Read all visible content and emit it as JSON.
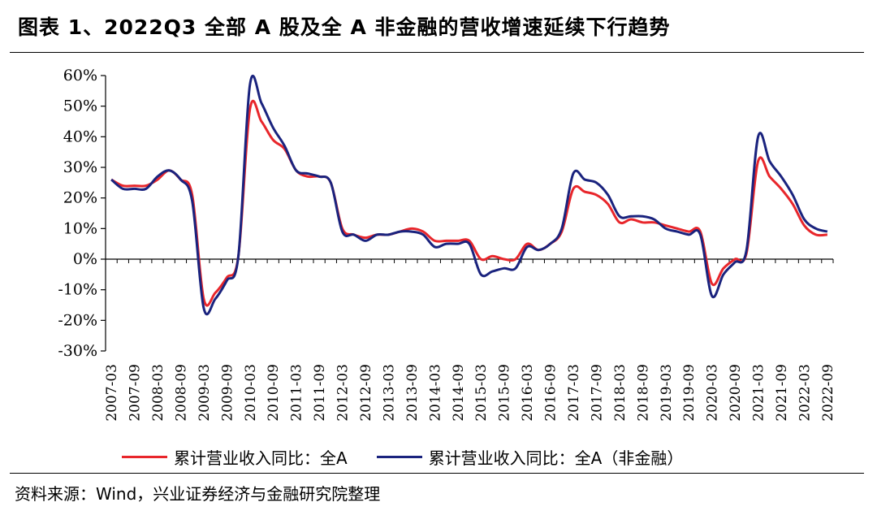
{
  "figure": {
    "title": "图表 1、2022Q3 全部 A 股及全 A 非金融的营收增速延续下行趋势",
    "source": "资料来源：Wind，兴业证券经济与金融研究院整理"
  },
  "chart_data": {
    "type": "line",
    "title": "图表 1、2022Q3 全部 A 股及全 A 非金融的营收增速延续下行趋势",
    "xlabel": "",
    "ylabel": "",
    "ylim": [
      -30,
      60
    ],
    "yticks": [
      -30,
      -20,
      -10,
      0,
      10,
      20,
      30,
      40,
      50,
      60
    ],
    "ytick_labels": [
      "-30%",
      "-20%",
      "-10%",
      "0%",
      "10%",
      "20%",
      "30%",
      "40%",
      "50%",
      "60%"
    ],
    "xtick_labels": [
      "2007-03",
      "2007-09",
      "2008-03",
      "2008-09",
      "2009-03",
      "2009-09",
      "2010-03",
      "2010-09",
      "2011-03",
      "2011-09",
      "2012-03",
      "2012-09",
      "2013-03",
      "2013-09",
      "2014-03",
      "2014-09",
      "2015-03",
      "2015-09",
      "2016-03",
      "2016-09",
      "2017-03",
      "2017-09",
      "2018-03",
      "2018-09",
      "2019-03",
      "2019-09",
      "2020-03",
      "2020-09",
      "2021-03",
      "2021-09",
      "2022-03",
      "2022-09"
    ],
    "x": [
      "2007-03",
      "2007-06",
      "2007-09",
      "2007-12",
      "2008-03",
      "2008-06",
      "2008-09",
      "2008-12",
      "2009-03",
      "2009-06",
      "2009-09",
      "2009-12",
      "2010-03",
      "2010-06",
      "2010-09",
      "2010-12",
      "2011-03",
      "2011-06",
      "2011-09",
      "2011-12",
      "2012-03",
      "2012-06",
      "2012-09",
      "2012-12",
      "2013-03",
      "2013-06",
      "2013-09",
      "2013-12",
      "2014-03",
      "2014-06",
      "2014-09",
      "2014-12",
      "2015-03",
      "2015-06",
      "2015-09",
      "2015-12",
      "2016-03",
      "2016-06",
      "2016-09",
      "2016-12",
      "2017-03",
      "2017-06",
      "2017-09",
      "2017-12",
      "2018-03",
      "2018-06",
      "2018-09",
      "2018-12",
      "2019-03",
      "2019-06",
      "2019-09",
      "2019-12",
      "2020-03",
      "2020-06",
      "2020-09",
      "2020-12",
      "2021-03",
      "2021-06",
      "2021-09",
      "2021-12",
      "2022-03",
      "2022-06",
      "2022-09"
    ],
    "series": [
      {
        "name": "累计营业收入同比：全A",
        "color": "#e8262b",
        "values": [
          26,
          24,
          24,
          24,
          26,
          29,
          26,
          21,
          -13,
          -11,
          -6,
          1,
          49,
          45,
          39,
          36,
          29,
          27,
          27,
          25,
          10,
          8,
          7,
          8,
          8,
          9,
          10,
          9,
          6,
          6,
          6,
          6,
          0,
          1,
          0,
          0,
          5,
          3,
          5,
          9,
          23,
          22,
          21,
          18,
          12,
          13,
          12,
          12,
          11,
          10,
          9,
          9,
          -8,
          -3,
          0,
          2,
          32,
          27,
          23,
          18,
          11,
          8,
          8
        ]
      },
      {
        "name": "累计营业收入同比：全A（非金融）",
        "color": "#1a237e",
        "values": [
          26,
          23,
          23,
          23,
          27,
          29,
          26,
          19,
          -16,
          -13,
          -7,
          1,
          57,
          51,
          43,
          37,
          29,
          28,
          27,
          25,
          9,
          8,
          6,
          8,
          8,
          9,
          9,
          8,
          4,
          5,
          5,
          5,
          -5,
          -4,
          -3,
          -3,
          4,
          3,
          5,
          10,
          28,
          26,
          25,
          21,
          14,
          14,
          14,
          13,
          10,
          9,
          8,
          8,
          -12,
          -5,
          -1,
          3,
          40,
          32,
          27,
          21,
          13,
          10,
          9
        ]
      }
    ],
    "grid": false,
    "legend_position": "bottom"
  }
}
